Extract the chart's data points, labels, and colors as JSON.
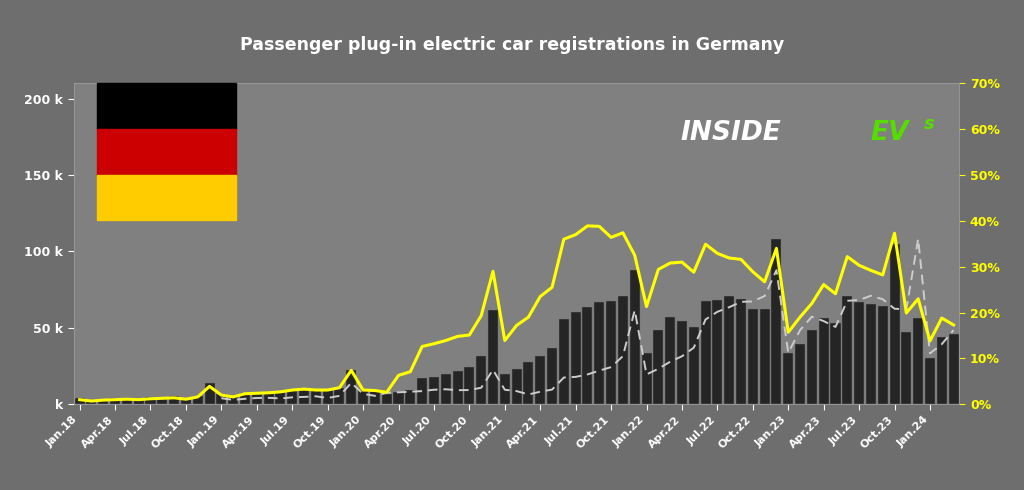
{
  "title": "Passenger plug-in electric car registrations in Germany",
  "background_color": "#6e6e6e",
  "plot_bg_color": "#808080",
  "title_bg_color": "#0d0d0d",
  "x_labels": [
    "Jan.18",
    "Apr.18",
    "Jul.18",
    "Oct.18",
    "Jan.19",
    "Apr.19",
    "Jul.19",
    "Oct.19",
    "Jan.20",
    "Apr.20",
    "Jul.20",
    "Oct.20",
    "Jan.21",
    "Apr.21",
    "Jul.21",
    "Oct.21",
    "Jan.22",
    "Apr.22",
    "Jul.22",
    "Oct.22",
    "Jan.23",
    "Apr.23",
    "Jul.23",
    "Oct.23",
    "Jan.24"
  ],
  "registrations": [
    3948,
    2867,
    3562,
    4100,
    4200,
    3800,
    4500,
    4800,
    5200,
    4100,
    5500,
    13987,
    6800,
    5500,
    7500,
    7800,
    8200,
    8600,
    9500,
    9800,
    9200,
    9300,
    10800,
    22500,
    9500,
    8600,
    6400,
    8200,
    9600,
    17500,
    17900,
    19500,
    22000,
    24300,
    31500,
    61500,
    19500,
    23200,
    27800,
    31400,
    37000,
    55500,
    60500,
    63500,
    67000,
    67300,
    70800,
    87700,
    33700,
    48500,
    57300,
    54400,
    50600,
    67700,
    68200,
    71000,
    68700,
    62500,
    62100,
    108200,
    33300,
    39300,
    48500,
    56400,
    53100,
    70900,
    66900,
    65700,
    64600,
    104900,
    47300,
    56300,
    30300,
    43900,
    46100
  ],
  "market_share": [
    1.0,
    0.7,
    0.9,
    1.0,
    1.1,
    1.0,
    1.2,
    1.3,
    1.4,
    1.1,
    1.6,
    3.9,
    2.0,
    1.6,
    2.3,
    2.4,
    2.5,
    2.7,
    3.1,
    3.3,
    3.1,
    3.1,
    3.6,
    7.4,
    3.1,
    3.0,
    2.6,
    6.3,
    7.1,
    12.6,
    13.2,
    13.9,
    14.8,
    15.1,
    19.3,
    29.0,
    13.9,
    17.2,
    19.0,
    23.5,
    25.5,
    36.0,
    37.0,
    38.9,
    38.8,
    36.4,
    37.4,
    32.5,
    21.3,
    29.4,
    30.8,
    31.0,
    28.8,
    34.9,
    32.9,
    31.9,
    31.6,
    28.9,
    26.7,
    34.0,
    15.7,
    19.0,
    22.0,
    26.1,
    24.1,
    32.2,
    30.3,
    29.2,
    28.2,
    37.3,
    19.9,
    23.0,
    13.8,
    18.8,
    17.3
  ],
  "prev_year": [
    null,
    null,
    null,
    null,
    null,
    null,
    null,
    null,
    null,
    null,
    null,
    null,
    3948,
    2867,
    3562,
    4100,
    4200,
    3800,
    4500,
    4800,
    5200,
    4100,
    5500,
    13987,
    6800,
    5500,
    7500,
    7800,
    8200,
    8600,
    9500,
    9800,
    9200,
    9300,
    10800,
    22500,
    9500,
    8600,
    6400,
    8200,
    9600,
    17500,
    17900,
    19500,
    22000,
    24300,
    31500,
    61500,
    19500,
    23200,
    27800,
    31400,
    37000,
    55500,
    60500,
    63500,
    67000,
    67300,
    70800,
    87700,
    33700,
    48500,
    57300,
    54400,
    50600,
    67700,
    68200,
    71000,
    68700,
    62500,
    62100,
    108200,
    33300,
    39300,
    48500
  ],
  "bar_color": "#252525",
  "bar_edge_color": "#777777",
  "line_color": "#ffff00",
  "prev_line_color": "#cccccc",
  "evs_green": "#55dd00",
  "legend_bar_color": "#444444"
}
